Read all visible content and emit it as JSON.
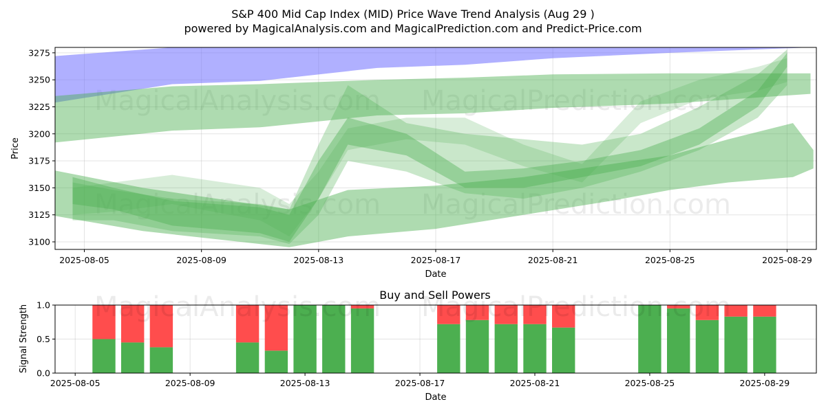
{
  "title_line1": "S&P 400 Mid Cap Index (MID) Price Wave Trend Analysis (Aug 29 )",
  "title_line2": "powered by MagicalAnalysis.com and MagicalPrediction.com and Predict-Price.com",
  "watermarks": [
    "MagicalAnalysis.com",
    "MagicalPrediction.com"
  ],
  "colors": {
    "buy": "#4caf50",
    "sell": "#ff4d4d",
    "blue_band": "#7070ff",
    "green_band": "#4caf50"
  },
  "chart_data": [
    {
      "type": "area",
      "title": "S&P 400 Mid Cap Index (MID) Price Wave Trend Analysis (Aug 29 )",
      "xlabel": "Date",
      "ylabel": "Price",
      "xlim": [
        "2025-08-04",
        "2025-08-30"
      ],
      "ylim": [
        3093,
        3280
      ],
      "x_ticks": [
        "2025-08-05",
        "2025-08-09",
        "2025-08-13",
        "2025-08-17",
        "2025-08-21",
        "2025-08-25",
        "2025-08-29"
      ],
      "y_ticks": [
        3100,
        3125,
        3150,
        3175,
        3200,
        3225,
        3250,
        3275
      ],
      "grid": true,
      "bands": [
        {
          "name": "blue-long-term",
          "color": "#7070ff",
          "alpha": 0.55,
          "x": [
            "2025-08-04",
            "2025-08-08",
            "2025-08-11",
            "2025-08-15",
            "2025-08-18",
            "2025-08-21",
            "2025-08-25",
            "2025-08-29.8"
          ],
          "upper": [
            3272,
            3280,
            3282,
            3283,
            3284,
            3284,
            3284,
            3284
          ],
          "lower": [
            3229,
            3246,
            3249,
            3261,
            3264,
            3270,
            3275,
            3280
          ]
        },
        {
          "name": "green-long-term",
          "color": "#4caf50",
          "alpha": 0.45,
          "x": [
            "2025-08-04",
            "2025-08-08",
            "2025-08-11",
            "2025-08-15",
            "2025-08-18",
            "2025-08-21",
            "2025-08-25",
            "2025-08-29.8"
          ],
          "upper": [
            3235,
            3244,
            3246,
            3250,
            3252,
            3255,
            3256,
            3256
          ],
          "lower": [
            3192,
            3203,
            3206,
            3217,
            3219,
            3224,
            3228,
            3237
          ]
        },
        {
          "name": "green-wave-1",
          "color": "#4caf50",
          "alpha": 0.4,
          "x": [
            "2025-08-04.6",
            "2025-08-06",
            "2025-08-08",
            "2025-08-11",
            "2025-08-12",
            "2025-08-13",
            "2025-08-14",
            "2025-08-16",
            "2025-08-18",
            "2025-08-20",
            "2025-08-22",
            "2025-08-24",
            "2025-08-26",
            "2025-08-28",
            "2025-08-29"
          ],
          "upper": [
            3160,
            3150,
            3138,
            3132,
            3125,
            3175,
            3215,
            3200,
            3165,
            3168,
            3175,
            3185,
            3205,
            3240,
            3275
          ],
          "lower": [
            3135,
            3130,
            3115,
            3108,
            3100,
            3140,
            3190,
            3180,
            3150,
            3150,
            3160,
            3170,
            3190,
            3225,
            3262
          ]
        },
        {
          "name": "green-wave-2",
          "color": "#4caf50",
          "alpha": 0.3,
          "x": [
            "2025-08-04.6",
            "2025-08-06",
            "2025-08-08",
            "2025-08-11",
            "2025-08-12",
            "2025-08-13",
            "2025-08-14",
            "2025-08-16",
            "2025-08-18",
            "2025-08-20",
            "2025-08-22",
            "2025-08-24",
            "2025-08-26",
            "2025-08-28",
            "2025-08-29"
          ],
          "upper": [
            3155,
            3148,
            3140,
            3135,
            3130,
            3190,
            3245,
            3210,
            3200,
            3195,
            3190,
            3200,
            3225,
            3255,
            3278
          ],
          "lower": [
            3120,
            3120,
            3110,
            3105,
            3098,
            3125,
            3175,
            3165,
            3145,
            3140,
            3150,
            3165,
            3185,
            3215,
            3245
          ]
        },
        {
          "name": "green-wave-3",
          "color": "#4caf50",
          "alpha": 0.22,
          "x": [
            "2025-08-04.6",
            "2025-08-06",
            "2025-08-08",
            "2025-08-11",
            "2025-08-12",
            "2025-08-13",
            "2025-08-14",
            "2025-08-16",
            "2025-08-18",
            "2025-08-20",
            "2025-08-22",
            "2025-08-24",
            "2025-08-26",
            "2025-08-28",
            "2025-08-29"
          ],
          "upper": [
            3150,
            3155,
            3162,
            3150,
            3135,
            3165,
            3205,
            3215,
            3215,
            3190,
            3172,
            3230,
            3250,
            3262,
            3270
          ],
          "lower": [
            3125,
            3128,
            3135,
            3120,
            3105,
            3140,
            3185,
            3195,
            3190,
            3170,
            3155,
            3210,
            3232,
            3240,
            3248
          ]
        },
        {
          "name": "green-lower-channel",
          "color": "#4caf50",
          "alpha": 0.45,
          "x": [
            "2025-08-04",
            "2025-08-07",
            "2025-08-12",
            "2025-08-14",
            "2025-08-17",
            "2025-08-20",
            "2025-08-23",
            "2025-08-25",
            "2025-08-27",
            "2025-08-29.2",
            "2025-08-29.9"
          ],
          "upper": [
            3166,
            3150,
            3130,
            3148,
            3152,
            3160,
            3172,
            3180,
            3195,
            3210,
            3185
          ],
          "lower": [
            3124,
            3110,
            3095,
            3105,
            3112,
            3125,
            3138,
            3148,
            3155,
            3160,
            3168
          ]
        }
      ]
    },
    {
      "type": "bar",
      "stacked": true,
      "title": "Buy and Sell Powers",
      "xlabel": "Date",
      "ylabel": "Signal Strength",
      "xlim": [
        "2025-08-04.3",
        "2025-08-30.8"
      ],
      "ylim": [
        0,
        1
      ],
      "x_ticks": [
        "2025-08-05",
        "2025-08-09",
        "2025-08-13",
        "2025-08-17",
        "2025-08-21",
        "2025-08-25",
        "2025-08-29"
      ],
      "y_ticks": [
        0.0,
        0.5,
        1.0
      ],
      "y_tick_labels": [
        "0.0",
        "0.5",
        "1.0"
      ],
      "grid": true,
      "series": [
        {
          "name": "Buy",
          "color": "#4caf50"
        },
        {
          "name": "Sell",
          "color": "#ff4d4d"
        }
      ],
      "categories": [
        "2025-08-06",
        "2025-08-07",
        "2025-08-08",
        "2025-08-11",
        "2025-08-12",
        "2025-08-13",
        "2025-08-14",
        "2025-08-15",
        "2025-08-18",
        "2025-08-19",
        "2025-08-20",
        "2025-08-21",
        "2025-08-22",
        "2025-08-25",
        "2025-08-26",
        "2025-08-27",
        "2025-08-28",
        "2025-08-29"
      ],
      "buy": [
        0.5,
        0.45,
        0.38,
        0.45,
        0.33,
        1.0,
        1.0,
        0.95,
        0.72,
        0.78,
        0.72,
        0.72,
        0.67,
        1.0,
        0.95,
        0.78,
        0.83,
        0.83
      ],
      "sell": [
        0.5,
        0.55,
        0.62,
        0.55,
        0.67,
        0.0,
        0.0,
        0.05,
        0.28,
        0.22,
        0.28,
        0.28,
        0.33,
        0.0,
        0.05,
        0.22,
        0.17,
        0.17
      ]
    }
  ]
}
